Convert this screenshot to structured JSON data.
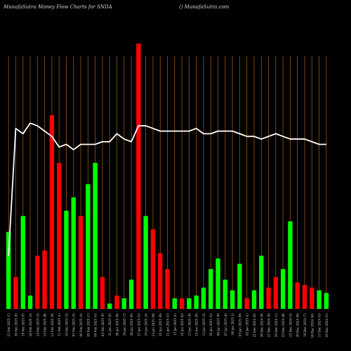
{
  "header": {
    "title": "MunafaSutra  Money Flow  Charts for SNDA",
    "credit": "() MunafaSutra.com"
  },
  "colors": {
    "background": "#000000",
    "up": "#00ff00",
    "down": "#ff0000",
    "grid": "#b5651d",
    "line": "#ffffff",
    "text": "#cccccc"
  },
  "chart_data": {
    "type": "bar",
    "title": "MunafaSutra  Money Flow  Charts for SNDA",
    "grid": "vertical",
    "categories": [
      "21 Feb 2025 (C)",
      "20 Feb 2025 (P)",
      "19 Feb 2025 (F)",
      "18 Feb 2025 (A)",
      "14 Feb 2025 (S)",
      "13 Feb 2025 (B)",
      "12 Feb 2025 (R)",
      "11 Feb 2025 (L)",
      "10 Feb 2025 (S)",
      "07 Feb 2025 (S)",
      "06 Feb 2025 (A)",
      "05 Feb 2025 (C)",
      "04 Feb 2025 (U)",
      "03 Feb 2025 (P)",
      "31 Jan 2025 (E)",
      "30 Jan 2025 (N)",
      "29 Jan 2025 (T)",
      "28 Jan 2025 (R)",
      "27 Jan 2025 (G)",
      "24 Jan 2025 (A)",
      "23 Jan 2025 (M)",
      "22 Jan 2025 (N)",
      "21 Jan 2025 (O)",
      "17 Jan 2025 (L)",
      "16 Jan 2025 (D)",
      "15 Jan 2025 (K)",
      "14 Jan 2025 (R)",
      "13 Jan 2025 (S)",
      "10 Jan 2025 (Q)",
      "08 Jan 2025 (P)",
      "07 Jan 2025 (E)",
      "06 Jan 2025 (I)",
      "03 Jan 2025 (M)",
      "02 Jan 2025 (L)",
      "31 Dec 2024 (H)",
      "30 Dec 2024 (R)",
      "27 Dec 2024 (K)",
      "26 Dec 2024 (C)",
      "24 Dec 2024 (B)",
      "23 Dec 2024 (S)",
      "20 Dec 2024 (N)",
      "19 Dec 2024 (T)",
      "18 Dec 2024 (W)",
      "17 Dec 2024 (U)",
      "16 Dec 2024 (O)"
    ],
    "flow": [
      "up",
      "down",
      "up",
      "up",
      "down",
      "down",
      "down",
      "down",
      "up",
      "up",
      "down",
      "up",
      "up",
      "down",
      "up",
      "down",
      "up",
      "up",
      "down",
      "up",
      "down",
      "down",
      "down",
      "up",
      "down",
      "up",
      "up",
      "up",
      "up",
      "up",
      "up",
      "up",
      "up",
      "down",
      "up",
      "up",
      "down",
      "down",
      "up",
      "up",
      "down",
      "down",
      "down",
      "up",
      "up"
    ],
    "values": [
      29,
      12,
      35,
      5,
      20,
      22,
      73,
      55,
      37,
      42,
      35,
      47,
      55,
      12,
      2,
      5,
      4,
      11,
      100,
      35,
      30,
      21,
      15,
      4,
      4,
      4,
      5,
      8,
      15,
      19,
      11,
      7,
      17,
      4,
      7,
      20,
      8,
      12,
      15,
      33,
      10,
      9,
      8,
      7,
      6
    ],
    "line": [
      20,
      68,
      66,
      70,
      69,
      67,
      65,
      61,
      62,
      60,
      62,
      62,
      62,
      63,
      63,
      66,
      64,
      63,
      69,
      69,
      68,
      67,
      67,
      67,
      67,
      67,
      68,
      66,
      66,
      67,
      67,
      67,
      66,
      65,
      65,
      64,
      65,
      66,
      65,
      64,
      64,
      64,
      63,
      62,
      62
    ],
    "ylim": [
      0,
      100
    ]
  }
}
